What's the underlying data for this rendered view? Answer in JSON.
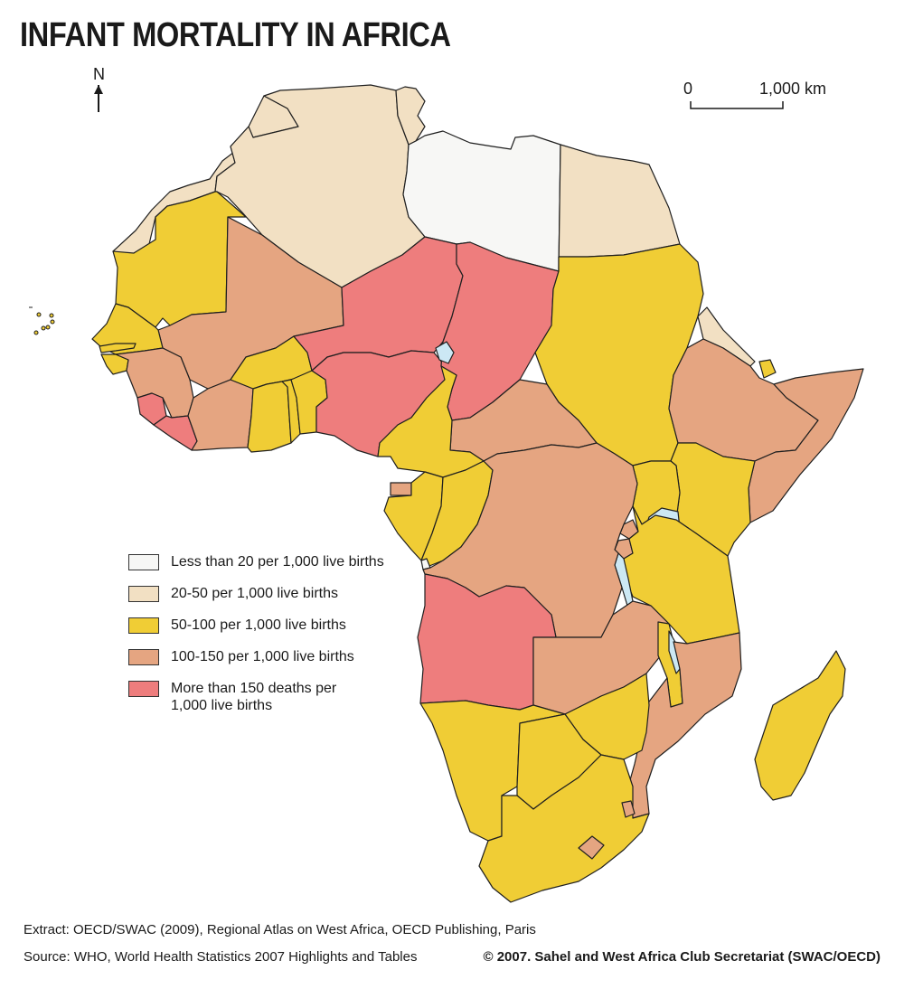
{
  "title": "INFANT MORTALITY IN AFRICA",
  "north_label": "N",
  "scale": {
    "start_label": "0",
    "end_label": "1,000 km"
  },
  "colors": {
    "lt20": "#f7f7f5",
    "c20_50": "#f2e0c3",
    "c50_100": "#f0cd35",
    "c100_150": "#e5a581",
    "gt150": "#ee7d7d",
    "water": "#cce8f4",
    "border": "#1f1f1f"
  },
  "legend": [
    {
      "label": "Less than 20 per 1,000 live births",
      "color": "#f7f7f5"
    },
    {
      "label": "20-50 per 1,000 live births",
      "color": "#f2e0c3"
    },
    {
      "label": "50-100 per 1,000 live births",
      "color": "#f0cd35"
    },
    {
      "label": "100-150 per 1,000 live births",
      "color": "#e5a581"
    },
    {
      "label": "More than 150 deaths per 1,000 live births",
      "color": "#ee7d7d"
    }
  ],
  "footer": {
    "extract": "Extract: OECD/SWAC (2009), Regional Atlas on West Africa, OECD Publishing, Paris",
    "source": "Source: WHO, World Health Statistics 2007 Highlights and Tables",
    "credit": "© 2007. Sahel and West Africa Club Secretariat (SWAC/OECD)"
  }
}
